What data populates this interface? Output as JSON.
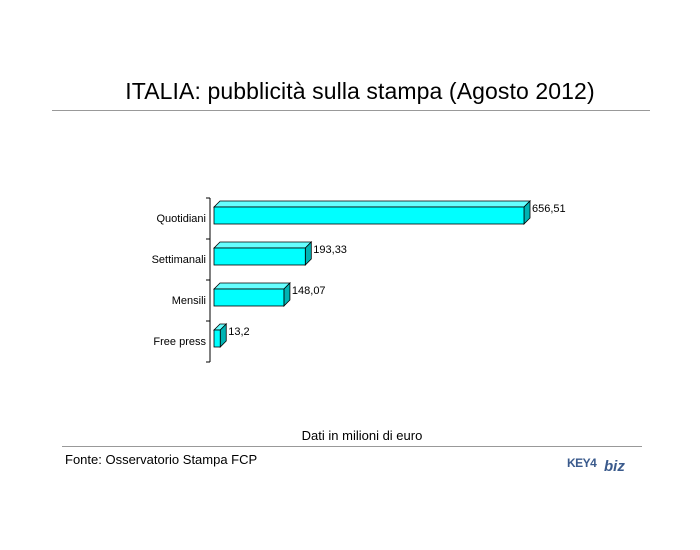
{
  "title": "ITALIA: pubblicità sulla stampa (Agosto 2012)",
  "unit_note": "Dati in milioni di euro",
  "source": "Fonte: Osservatorio Stampa FCP",
  "logo": {
    "text_left": "KEY4",
    "text_right": "biz",
    "color": "#3a5a8c"
  },
  "chart_data": {
    "type": "bar",
    "orientation": "horizontal",
    "style": "3d",
    "categories": [
      "Quotidiani",
      "Settimanali",
      "Mensili",
      "Free press"
    ],
    "values": [
      656.51,
      193.33,
      148.07,
      13.2
    ],
    "value_labels": [
      "656,51",
      "193,33",
      "148,07",
      "13,2"
    ],
    "title": "ITALIA: pubblicità sulla stampa (Agosto 2012)",
    "xlabel": "Dati in milioni di euro",
    "ylabel": "",
    "xlim": [
      0,
      656.51
    ],
    "grid": false,
    "legend": "none",
    "colors": {
      "front": "#00ffff",
      "top": "#66ffff",
      "side": "#00b3b3",
      "edge": "#000000"
    }
  }
}
